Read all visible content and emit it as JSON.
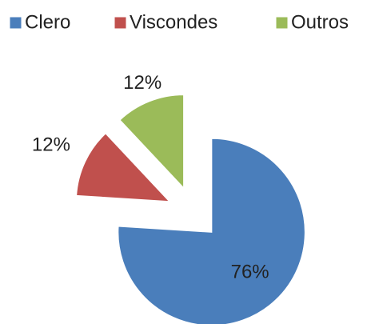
{
  "chart_data": {
    "type": "pie",
    "categories": [
      "Clero",
      "Viscondes",
      "Outros"
    ],
    "values": [
      76,
      12,
      12
    ],
    "value_labels": [
      "76%",
      "12%",
      "12%"
    ],
    "colors": [
      "#4a7ebb",
      "#c0504d",
      "#9bbb59"
    ],
    "legend": "top"
  }
}
